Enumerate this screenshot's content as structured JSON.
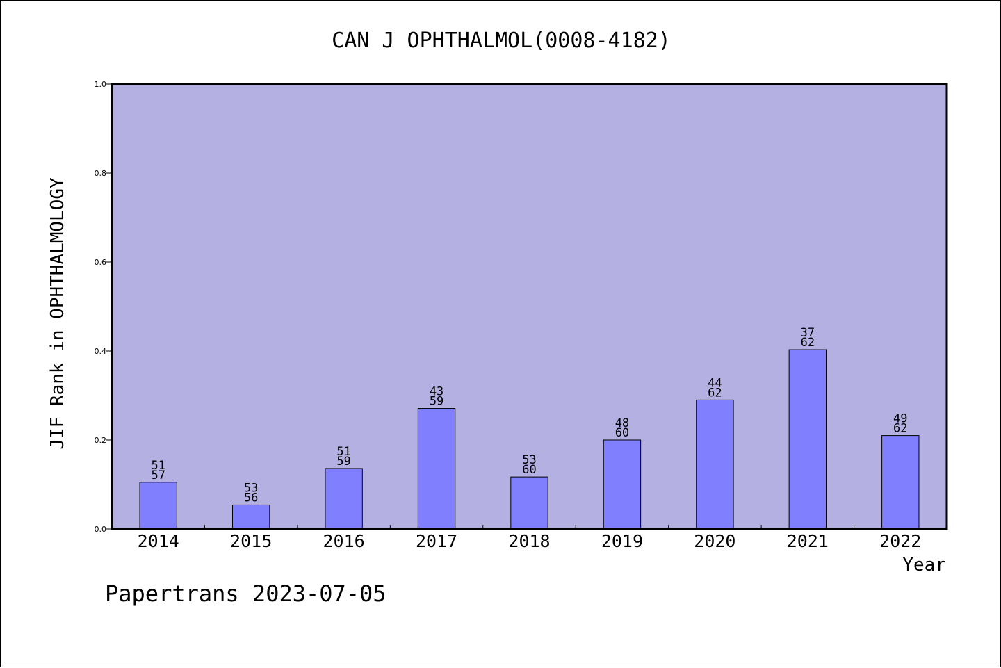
{
  "chart_data": {
    "type": "bar",
    "title": "CAN J OPHTHALMOL(0008-4182)",
    "xlabel": "Year",
    "ylabel": "JIF Rank in OPHTHALMOLOGY",
    "ylim": [
      0,
      1.0
    ],
    "yticks": [
      "0.0",
      "0.2",
      "0.4",
      "0.6",
      "0.8",
      "1.0"
    ],
    "categories": [
      "2014",
      "2015",
      "2016",
      "2017",
      "2018",
      "2019",
      "2020",
      "2021",
      "2022"
    ],
    "values": [
      0.105,
      0.054,
      0.136,
      0.271,
      0.117,
      0.2,
      0.29,
      0.403,
      0.21
    ],
    "ranks": [
      "51",
      "53",
      "51",
      "43",
      "53",
      "48",
      "44",
      "37",
      "49"
    ],
    "totals": [
      "57",
      "56",
      "59",
      "59",
      "60",
      "60",
      "62",
      "62",
      "62"
    ],
    "grid": false,
    "legend": "none",
    "colors": {
      "plot_bg": "#b5b0e2",
      "bar": "#8080ff",
      "axis": "#000000"
    }
  },
  "footer": {
    "credit": "Papertrans 2023-07-05"
  }
}
